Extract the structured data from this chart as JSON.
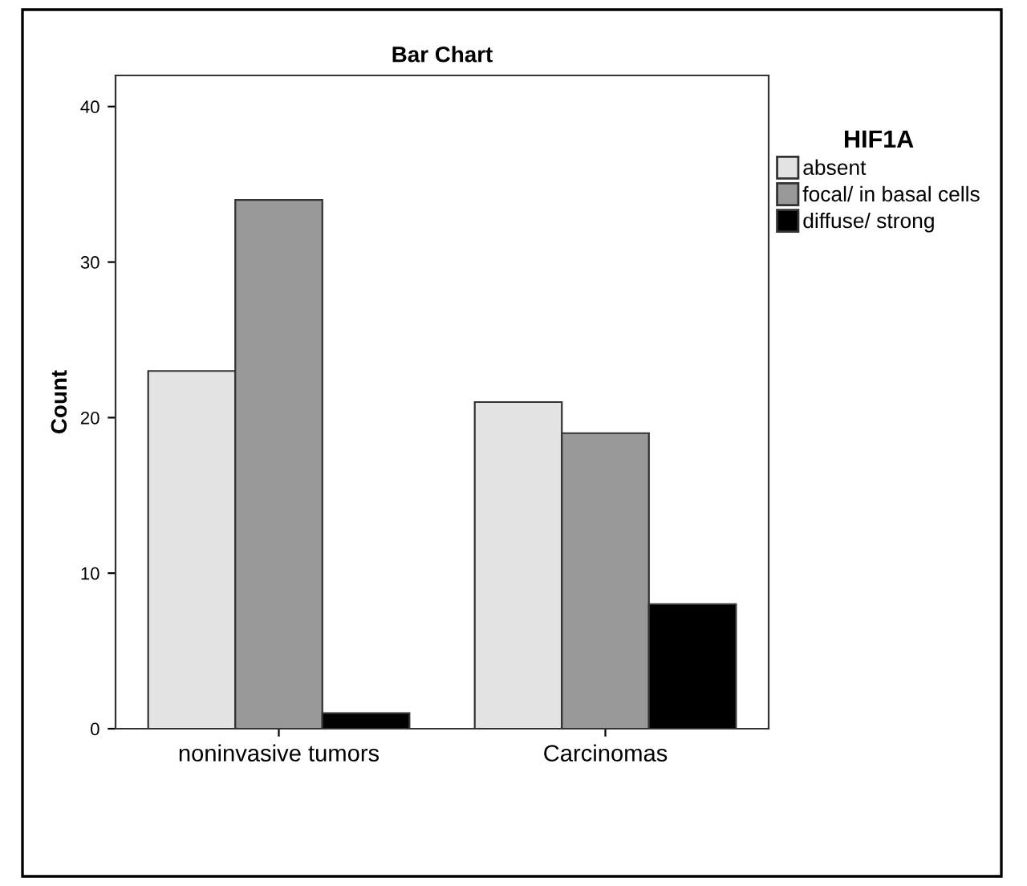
{
  "chart_data": {
    "type": "bar",
    "title": "Bar Chart",
    "ylabel": "Count",
    "legend_title": "HIF1A",
    "categories": [
      "noninvasive tumors",
      "Carcinomas"
    ],
    "series": [
      {
        "name": "absent",
        "color": "#e3e3e3",
        "values": [
          23,
          21
        ]
      },
      {
        "name": "focal/ in basal cells",
        "color": "#999999",
        "values": [
          34,
          19
        ]
      },
      {
        "name": "diffuse/ strong",
        "color": "#000000",
        "values": [
          1,
          8
        ]
      }
    ],
    "ylim": [
      0,
      42
    ],
    "yticks": [
      0,
      10,
      20,
      30,
      40
    ],
    "grid": false,
    "legend": "top right"
  }
}
